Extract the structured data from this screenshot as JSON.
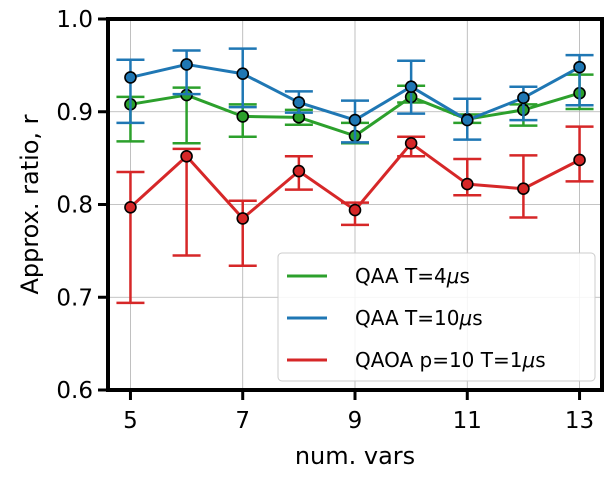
{
  "chart_data": {
    "type": "line",
    "xlabel": "num. vars",
    "ylabel": "Approx. ratio, r",
    "xlim": [
      4.6,
      13.4
    ],
    "ylim": [
      0.6,
      1.0
    ],
    "xticks": [
      5,
      7,
      9,
      11,
      13
    ],
    "yticks": [
      0.6,
      0.7,
      0.8,
      0.9,
      1.0
    ],
    "ytick_labels": [
      "0.6",
      "0.7",
      "0.8",
      "0.9",
      "1.0"
    ],
    "grid": true,
    "legend_position": "lower-right",
    "x": [
      5,
      6,
      7,
      8,
      9,
      10,
      11,
      12,
      13
    ],
    "series": [
      {
        "name": "QAA T=4μs",
        "legend": {
          "prefix": "QAA T=4",
          "mu": "μ",
          "suffix": "s"
        },
        "color": "#2ca02c",
        "values": [
          0.908,
          0.918,
          0.895,
          0.894,
          0.874,
          0.916,
          0.892,
          0.902,
          0.92
        ],
        "err_low": [
          0.868,
          0.866,
          0.873,
          0.886,
          0.866,
          0.91,
          0.888,
          0.885,
          0.903
        ],
        "err_high": [
          0.916,
          0.926,
          0.908,
          0.902,
          0.888,
          0.928,
          0.897,
          0.908,
          0.94
        ]
      },
      {
        "name": "QAA T=10μs",
        "legend": {
          "prefix": "QAA T=10",
          "mu": "μ",
          "suffix": "s"
        },
        "color": "#1f77b4",
        "values": [
          0.937,
          0.951,
          0.941,
          0.91,
          0.891,
          0.927,
          0.891,
          0.915,
          0.948
        ],
        "err_low": [
          0.888,
          0.919,
          0.905,
          0.899,
          0.867,
          0.898,
          0.87,
          0.891,
          0.907
        ],
        "err_high": [
          0.956,
          0.966,
          0.968,
          0.922,
          0.912,
          0.955,
          0.914,
          0.927,
          0.961
        ]
      },
      {
        "name": "QAOA p=10 T=1μs",
        "legend": {
          "prefix": "QAOA p=10 T=1",
          "mu": "μ",
          "suffix": "s"
        },
        "color": "#d62728",
        "values": [
          0.797,
          0.852,
          0.785,
          0.836,
          0.794,
          0.866,
          0.822,
          0.817,
          0.848
        ],
        "err_low": [
          0.694,
          0.745,
          0.734,
          0.816,
          0.778,
          0.852,
          0.81,
          0.786,
          0.825
        ],
        "err_high": [
          0.835,
          0.86,
          0.804,
          0.852,
          0.802,
          0.873,
          0.849,
          0.853,
          0.884
        ]
      }
    ]
  }
}
